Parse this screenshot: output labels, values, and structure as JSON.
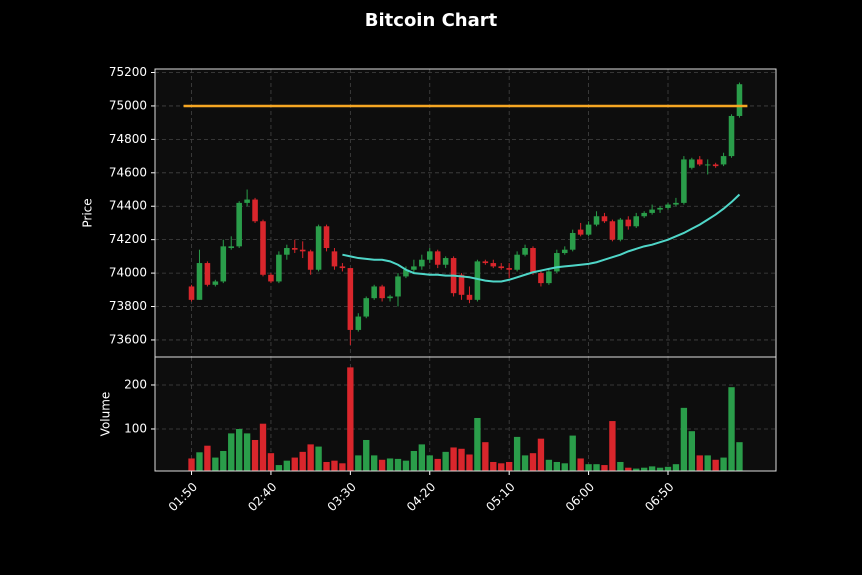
{
  "chart_data": {
    "type": "candlestick",
    "title": "Bitcoin Chart",
    "x": [
      "01:50",
      "01:55",
      "02:00",
      "02:05",
      "02:10",
      "02:15",
      "02:20",
      "02:25",
      "02:30",
      "02:35",
      "02:40",
      "02:45",
      "02:50",
      "02:55",
      "03:00",
      "03:05",
      "03:10",
      "03:15",
      "03:20",
      "03:25",
      "03:30",
      "03:35",
      "03:40",
      "03:45",
      "03:50",
      "03:55",
      "04:00",
      "04:05",
      "04:10",
      "04:15",
      "04:20",
      "04:25",
      "04:30",
      "04:35",
      "04:40",
      "04:45",
      "04:50",
      "04:55",
      "05:00",
      "05:05",
      "05:10",
      "05:15",
      "05:20",
      "05:25",
      "05:30",
      "05:35",
      "05:40",
      "05:45",
      "05:50",
      "05:55",
      "06:00",
      "06:05",
      "06:10",
      "06:15",
      "06:20",
      "06:25",
      "06:30",
      "06:35",
      "06:40",
      "06:45",
      "06:50",
      "06:55",
      "07:00",
      "07:05",
      "07:10",
      "07:15",
      "07:20",
      "07:25",
      "07:30",
      "07:35"
    ],
    "open": [
      73920,
      73840,
      74060,
      73930,
      73950,
      74150,
      74160,
      74420,
      74440,
      74310,
      73990,
      73950,
      74110,
      74150,
      74140,
      74130,
      74020,
      74280,
      74130,
      74040,
      74030,
      73660,
      73740,
      73850,
      73920,
      73850,
      73860,
      73980,
      74020,
      74040,
      74080,
      74130,
      74050,
      74090,
      73990,
      73870,
      73840,
      74070,
      74060,
      74040,
      74030,
      74020,
      74110,
      74150,
      74000,
      73940,
      74010,
      74120,
      74140,
      74260,
      74230,
      74290,
      74340,
      74310,
      74200,
      74320,
      74280,
      74340,
      74360,
      74380,
      74390,
      74410,
      74420,
      74630,
      74680,
      74650,
      74650,
      74650,
      74700,
      74940
    ],
    "high": [
      73930,
      74140,
      74070,
      73960,
      74200,
      74220,
      74430,
      74500,
      74450,
      74320,
      74000,
      74130,
      74170,
      74200,
      74190,
      74140,
      74290,
      74290,
      74150,
      74060,
      74030,
      73760,
      73860,
      73930,
      73930,
      73870,
      74000,
      74040,
      74080,
      74110,
      74150,
      74140,
      74100,
      74100,
      74000,
      73920,
      74080,
      74080,
      74080,
      74060,
      74060,
      74130,
      74170,
      74160,
      74010,
      74020,
      74140,
      74160,
      74260,
      74300,
      74310,
      74370,
      74360,
      74320,
      74330,
      74340,
      74360,
      74370,
      74410,
      74400,
      74420,
      74450,
      74700,
      74690,
      74700,
      74680,
      74660,
      74720,
      74950,
      75140
    ],
    "low": [
      73830,
      73840,
      73920,
      73920,
      73940,
      74140,
      74150,
      74400,
      74300,
      73980,
      73940,
      73940,
      74080,
      74120,
      74090,
      73990,
      74010,
      74130,
      74020,
      74010,
      73570,
      73650,
      73730,
      73840,
      73830,
      73830,
      73800,
      73970,
      74000,
      74020,
      74060,
      74030,
      74030,
      73860,
      73840,
      73820,
      73830,
      74050,
      74030,
      74020,
      73970,
      74010,
      74100,
      73990,
      73920,
      73930,
      74000,
      74110,
      74130,
      74220,
      74220,
      74280,
      74300,
      74190,
      74190,
      74260,
      74270,
      74330,
      74350,
      74360,
      74380,
      74400,
      74410,
      74620,
      74640,
      74590,
      74630,
      74640,
      74690,
      74930
    ],
    "close": [
      73840,
      74060,
      73930,
      73950,
      74160,
      74160,
      74420,
      74440,
      74310,
      73990,
      73950,
      74110,
      74150,
      74140,
      74130,
      74020,
      74280,
      74150,
      74040,
      74030,
      73660,
      73740,
      73850,
      73920,
      73850,
      73860,
      73980,
      74020,
      74040,
      74080,
      74130,
      74050,
      74090,
      73880,
      73870,
      73840,
      74070,
      74060,
      74040,
      74030,
      74020,
      74110,
      74150,
      74000,
      73940,
      74010,
      74120,
      74140,
      74240,
      74230,
      74290,
      74340,
      74310,
      74200,
      74320,
      74280,
      74340,
      74360,
      74380,
      74390,
      74410,
      74420,
      74680,
      74680,
      74650,
      74650,
      74640,
      74700,
      74940,
      75130
    ],
    "volume": [
      33,
      47,
      62,
      35,
      50,
      90,
      100,
      90,
      75,
      112,
      45,
      18,
      28,
      35,
      48,
      65,
      60,
      25,
      28,
      22,
      240,
      40,
      75,
      40,
      30,
      33,
      32,
      28,
      50,
      65,
      40,
      32,
      48,
      58,
      55,
      42,
      125,
      70,
      25,
      22,
      25,
      82,
      40,
      45,
      78,
      30,
      25,
      22,
      85,
      33,
      20,
      20,
      18,
      118,
      25,
      12,
      10,
      12,
      15,
      12,
      14,
      20,
      148,
      95,
      40,
      40,
      30,
      35,
      195,
      70
    ],
    "up_color": "#2a9d4a",
    "down_color": "#d9262c",
    "ma": {
      "color": "#4fd6c8",
      "values": [
        null,
        null,
        null,
        null,
        null,
        null,
        null,
        null,
        null,
        null,
        null,
        null,
        null,
        null,
        null,
        null,
        null,
        null,
        null,
        74110,
        74100,
        74090,
        74085,
        74080,
        74080,
        74070,
        74050,
        74020,
        74000,
        73995,
        73990,
        73990,
        73985,
        73985,
        73980,
        73975,
        73965,
        73955,
        73950,
        73950,
        73960,
        73975,
        73990,
        74005,
        74015,
        74025,
        74035,
        74040,
        74045,
        74050,
        74055,
        74065,
        74080,
        74095,
        74110,
        74130,
        74145,
        74160,
        74170,
        74185,
        74200,
        74220,
        74240,
        74265,
        74290,
        74320,
        74350,
        74385,
        74425,
        74470
      ]
    },
    "hline": {
      "value": 75000,
      "color": "#f5a623"
    },
    "ylabel": "Price",
    "ylim": [
      73498,
      75221
    ],
    "yticks": [
      73600,
      73800,
      74000,
      74200,
      74400,
      74600,
      74800,
      75000,
      75200
    ],
    "volume_ylabel": "Volume",
    "volume_ylim": [
      4.5,
      263.6
    ],
    "volume_yticks": [
      100,
      200
    ],
    "xlim": [
      "01:27",
      "07:58"
    ],
    "xticks": [
      "01:50",
      "02:40",
      "03:30",
      "04:20",
      "05:10",
      "06:00",
      "06:50"
    ],
    "grid": true
  }
}
